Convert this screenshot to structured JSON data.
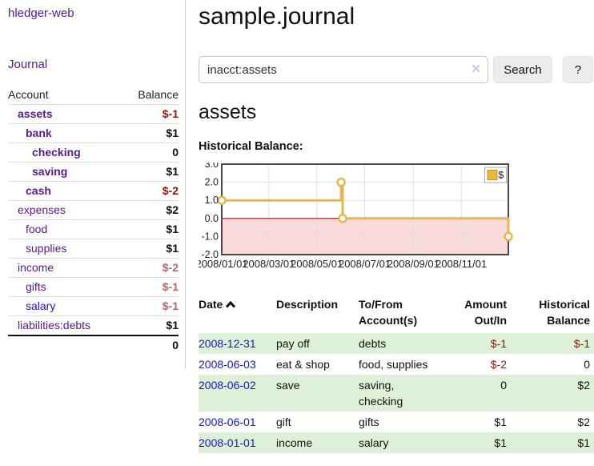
{
  "sidebar": {
    "brand": "hledger-web",
    "journal_link": "Journal",
    "accounts_table": {
      "col_account": "Account",
      "col_balance": "Balance",
      "rows": [
        {
          "name": "assets",
          "balance": "$-1"
        },
        {
          "name": "bank",
          "balance": "$1"
        },
        {
          "name": "checking",
          "balance": "0"
        },
        {
          "name": "saving",
          "balance": "$1"
        },
        {
          "name": "cash",
          "balance": "$-2"
        },
        {
          "name": "expenses",
          "balance": "$2"
        },
        {
          "name": "food",
          "balance": "$1"
        },
        {
          "name": "supplies",
          "balance": "$1"
        },
        {
          "name": "income",
          "balance": "$-2"
        },
        {
          "name": "gifts",
          "balance": "$-1"
        },
        {
          "name": "salary",
          "balance": "$-1"
        },
        {
          "name": "liabilities:debts",
          "balance": "$1"
        }
      ],
      "total": "0"
    }
  },
  "header": {
    "title": "sample.journal"
  },
  "search": {
    "value": "inacct:assets",
    "clear_icon": "✕",
    "button_label": "Search",
    "help_label": "?"
  },
  "account_page": {
    "title": "assets"
  },
  "chart_data": {
    "type": "line",
    "title": "Historical Balance:",
    "legend_label": "$",
    "step": true,
    "x_range": [
      "2008-01-01",
      "2008-12-31"
    ],
    "ylim": [
      -2,
      3
    ],
    "y_ticks": [
      "3.0",
      "2.0",
      "1.0",
      "0.0",
      "-1.0",
      "-2.0"
    ],
    "x_tick_labels": [
      "2008/01/01",
      "2008/03/01",
      "2008/05/01",
      "2008/07/01",
      "2008/09/01",
      "2008/11/01"
    ],
    "series": [
      {
        "name": "$",
        "points": [
          {
            "date": "2008-01-01",
            "value": 1
          },
          {
            "date": "2008-06-01",
            "value": 2
          },
          {
            "date": "2008-06-03",
            "value": 0
          },
          {
            "date": "2008-12-31",
            "value": -1
          }
        ]
      }
    ],
    "colors": {
      "line": "#e4b84d",
      "marker_fill": "#ffffff",
      "negative_region": "#f9dada",
      "zero_line": "#990000",
      "grid": "#e0e0e0",
      "border": "#4a4a4a",
      "legend_border": "#aaaaaa",
      "legend_swatch": "#e8bb3f",
      "legend_swatch_border": "#bd9330"
    }
  },
  "register_table": {
    "headers": {
      "date": "Date",
      "description": "Description",
      "accounts": "To/From\nAccount(s)",
      "amount": "Amount\nOut/In",
      "balance": "Historical\nBalance"
    },
    "rows": [
      {
        "date": "2008-12-31",
        "description": "pay off",
        "accounts": "debts",
        "amount": "$-1",
        "balance": "$-1"
      },
      {
        "date": "2008-06-03",
        "description": "eat & shop",
        "accounts": "food, supplies",
        "amount": "$-2",
        "balance": "0"
      },
      {
        "date": "2008-06-02",
        "description": "save",
        "accounts": "saving,\nchecking",
        "amount": "0",
        "balance": "$2"
      },
      {
        "date": "2008-06-01",
        "description": "gift",
        "accounts": "gifts",
        "amount": "$1",
        "balance": "$2"
      },
      {
        "date": "2008-01-01",
        "description": "income",
        "accounts": "salary",
        "amount": "$1",
        "balance": "$1"
      }
    ]
  }
}
